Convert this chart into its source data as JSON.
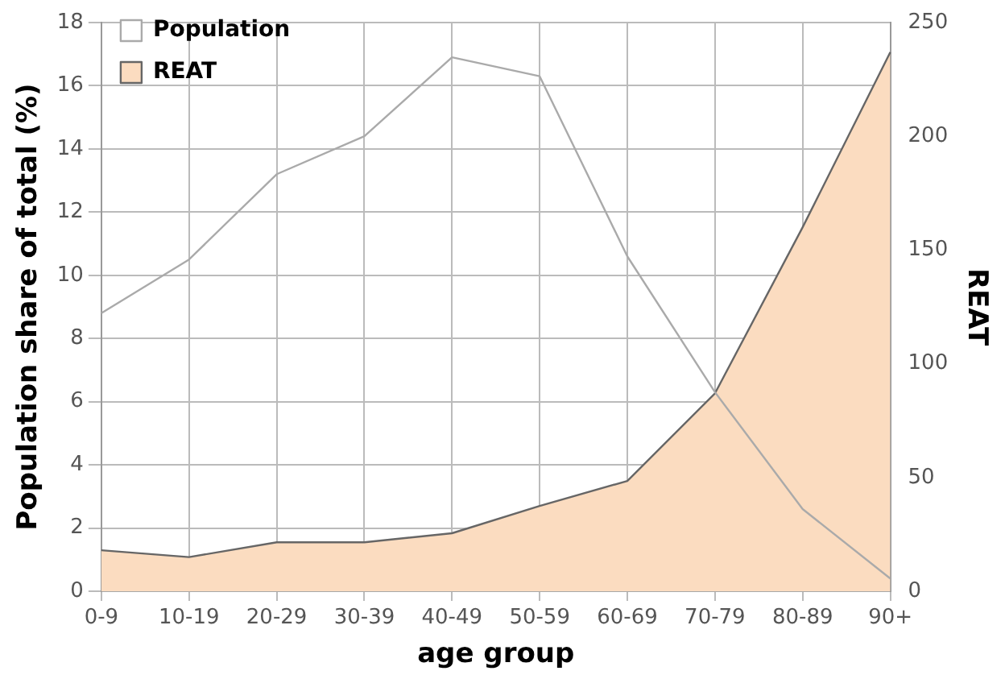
{
  "chart_data": {
    "type": "line",
    "xlabel": "age group",
    "ylabel": "Population share of total (%)",
    "y2label": "REAT",
    "categories": [
      "0-9",
      "10-19",
      "20-29",
      "30-39",
      "40-49",
      "50-59",
      "60-69",
      "70-79",
      "80-89",
      "90+"
    ],
    "series": [
      {
        "name": "Population",
        "type": "line",
        "color": "#aaaaaa",
        "values": [
          8.8,
          10.5,
          13.2,
          14.4,
          16.9,
          16.3,
          10.6,
          6.3,
          2.6,
          0.4
        ]
      },
      {
        "name": "REAT",
        "type": "area",
        "axis": "y2",
        "color": "#fbdcc0",
        "values": [
          18,
          15,
          21.5,
          21.5,
          25.5,
          37.5,
          48.5,
          87,
          160,
          237
        ]
      }
    ],
    "ylim": [
      0,
      18
    ],
    "yticks": [
      0,
      2,
      4,
      6,
      8,
      10,
      12,
      14,
      16,
      18
    ],
    "y2lim": [
      0,
      250
    ],
    "y2ticks": [
      0,
      50,
      100,
      150,
      200,
      250
    ],
    "grid": true,
    "legend": "top left",
    "marker": "none",
    "line_style": "solid"
  }
}
